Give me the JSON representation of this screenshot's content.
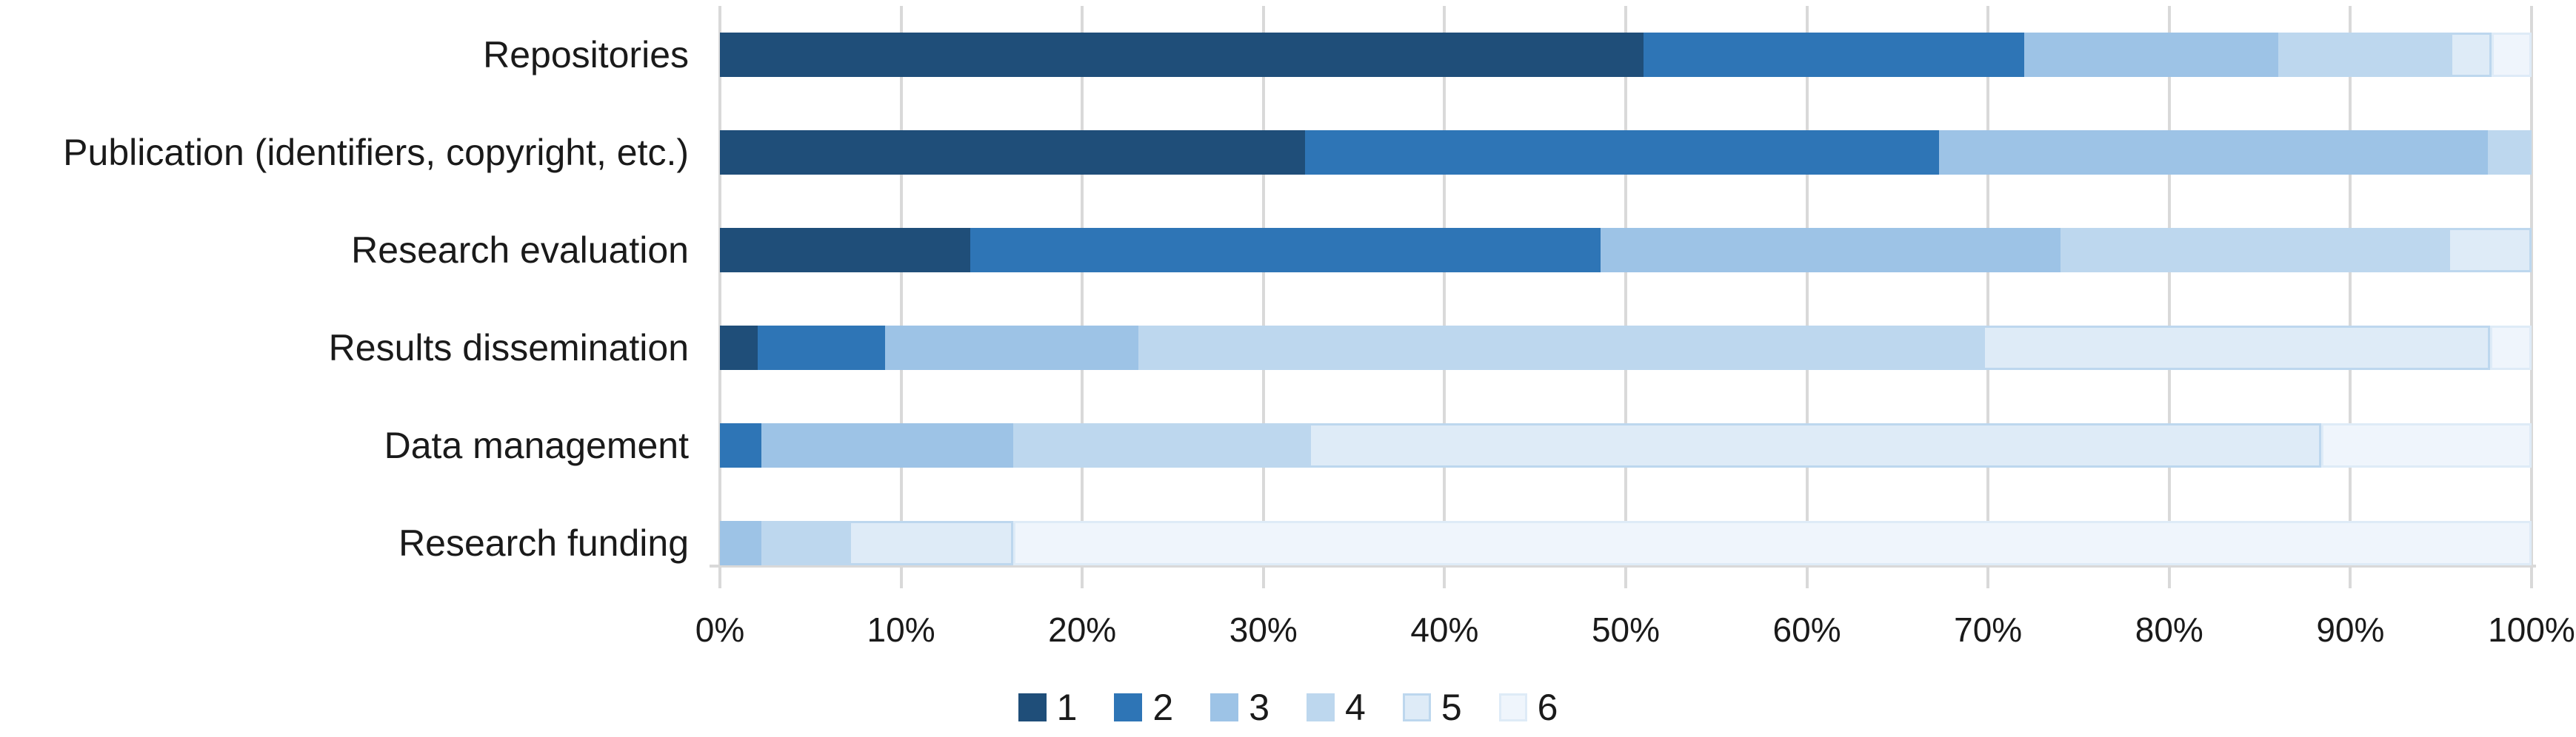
{
  "figure": {
    "background_color": "#FFFFFF",
    "gridline_color": "#D9D9D9",
    "text_color": "#1A1A1A"
  },
  "chart_data": {
    "type": "bar",
    "orientation": "horizontal",
    "stacked": true,
    "stack_unit": "percent",
    "title": "",
    "xlabel": "",
    "ylabel": "",
    "categories": [
      "Repositories",
      "Publication (identifiers, copyright, etc.)",
      "Research evaluation",
      "Results dissemination",
      "Data management",
      "Research funding"
    ],
    "series": [
      {
        "name": "1",
        "color": "#1F4E79",
        "values": [
          51.0,
          32.3,
          13.8,
          2.1,
          0,
          0
        ]
      },
      {
        "name": "2",
        "color": "#2E75B6",
        "values": [
          21.0,
          35.0,
          34.8,
          7.0,
          2.3,
          0
        ]
      },
      {
        "name": "3",
        "color": "#9DC3E6",
        "values": [
          14.0,
          30.3,
          25.4,
          14.0,
          13.9,
          2.3
        ]
      },
      {
        "name": "4",
        "color": "#BDD7EE",
        "values": [
          9.5,
          2.4,
          21.4,
          46.6,
          16.3,
          4.8
        ]
      },
      {
        "name": "5",
        "color": "#DEEBF7",
        "border_color": "#BDD7EE",
        "values": [
          2.3,
          0,
          4.6,
          28.0,
          55.9,
          9.1
        ]
      },
      {
        "name": "6",
        "color": "#EFF5FC",
        "border_color": "#DEEBF7",
        "values": [
          2.2,
          0,
          0,
          2.3,
          11.6,
          83.8
        ]
      }
    ],
    "x_axis": {
      "min": 0,
      "max": 100,
      "tick_step": 10,
      "ticks": [
        "0%",
        "10%",
        "20%",
        "30%",
        "40%",
        "50%",
        "60%",
        "70%",
        "80%",
        "90%",
        "100%"
      ]
    },
    "legend": {
      "position": "bottom",
      "entries": [
        "1",
        "2",
        "3",
        "4",
        "5",
        "6"
      ]
    },
    "gridlines": {
      "vertical": true,
      "horizontal": false
    }
  }
}
